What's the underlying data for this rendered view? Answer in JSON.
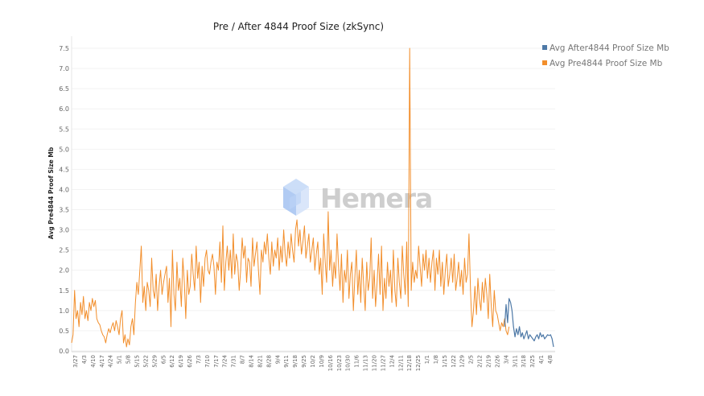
{
  "colors": {
    "pre": "#f28e2b",
    "after": "#4e79a7",
    "grid": "#f2f2f2",
    "axis": "#d9d9d9",
    "watermark_icon": "#bcd2f5"
  },
  "watermark": {
    "text": "Hemera"
  },
  "chart_data": {
    "type": "line",
    "title": "Pre / After 4844 Proof Size (zkSync)",
    "ylabel": "Avg Pre4844 Proof Size Mb",
    "xlabel": "",
    "ylim": [
      0,
      7.5
    ],
    "yticks": [
      "0.0",
      "0.5",
      "1.0",
      "1.5",
      "2.0",
      "2.5",
      "3.0",
      "3.5",
      "4.0",
      "4.5",
      "5.0",
      "5.5",
      "6.0",
      "6.5",
      "7.0",
      "7.5"
    ],
    "x_tick_labels": [
      "3/27",
      "4/3",
      "4/10",
      "4/17",
      "4/24",
      "5/1",
      "5/8",
      "5/15",
      "5/22",
      "5/29",
      "6/5",
      "6/12",
      "6/19",
      "6/26",
      "7/3",
      "7/10",
      "7/17",
      "7/24",
      "7/31",
      "8/7",
      "8/14",
      "8/21",
      "8/28",
      "9/4",
      "9/11",
      "9/18",
      "9/25",
      "10/2",
      "10/9",
      "10/16",
      "10/23",
      "10/30",
      "11/6",
      "11/13",
      "11/20",
      "11/27",
      "12/4",
      "12/11",
      "12/18",
      "12/25",
      "1/1",
      "1/8",
      "1/15",
      "1/22",
      "1/29",
      "2/5",
      "2/12",
      "2/19",
      "2/26",
      "3/4",
      "3/11",
      "3/18",
      "3/25",
      "4/1",
      "4/8"
    ],
    "legend": [
      "Avg After4844 Proof Size Mb",
      "Avg Pre4844 Proof Size Mb"
    ],
    "legend_position": "top-right",
    "series": [
      {
        "name": "Avg Pre4844 Proof Size Mb",
        "start_index": 0,
        "values": [
          0.2,
          0.4,
          1.5,
          0.8,
          1.0,
          0.6,
          1.2,
          0.9,
          1.35,
          0.8,
          1.0,
          0.75,
          1.2,
          1.0,
          1.3,
          1.1,
          1.25,
          0.8,
          0.7,
          0.65,
          0.5,
          0.4,
          0.35,
          0.2,
          0.4,
          0.55,
          0.45,
          0.6,
          0.7,
          0.5,
          0.75,
          0.6,
          0.4,
          0.8,
          1.0,
          0.2,
          0.4,
          0.1,
          0.3,
          0.15,
          0.6,
          0.8,
          0.4,
          1.2,
          1.7,
          1.4,
          2.0,
          2.6,
          1.2,
          1.6,
          1.0,
          1.7,
          1.5,
          1.1,
          2.3,
          1.5,
          1.3,
          1.9,
          1.0,
          1.6,
          2.0,
          1.4,
          1.7,
          1.9,
          2.1,
          1.2,
          1.8,
          0.6,
          2.5,
          1.4,
          1.0,
          2.2,
          1.5,
          1.8,
          1.1,
          2.3,
          1.7,
          0.8,
          2.0,
          1.4,
          1.6,
          2.4,
          1.9,
          1.5,
          2.6,
          1.8,
          2.2,
          1.2,
          2.1,
          1.6,
          2.3,
          2.5,
          2.0,
          1.9,
          2.2,
          2.4,
          2.1,
          1.4,
          2.2,
          2.0,
          2.7,
          1.7,
          3.1,
          1.5,
          2.2,
          2.6,
          2.0,
          2.5,
          1.8,
          2.9,
          1.9,
          2.4,
          2.2,
          1.5,
          2.0,
          2.8,
          2.3,
          2.6,
          1.7,
          2.3,
          2.2,
          1.6,
          2.8,
          2.1,
          2.4,
          2.7,
          2.0,
          1.4,
          2.5,
          2.2,
          2.7,
          2.4,
          2.9,
          2.3,
          1.9,
          2.7,
          2.1,
          2.5,
          2.3,
          2.8,
          2.0,
          2.6,
          2.2,
          3.0,
          2.4,
          2.1,
          2.7,
          2.3,
          2.9,
          2.5,
          2.2,
          3.0,
          3.25,
          2.6,
          3.0,
          2.4,
          2.7,
          3.1,
          2.3,
          2.6,
          2.9,
          2.2,
          2.5,
          2.8,
          2.0,
          2.4,
          2.7,
          1.9,
          2.3,
          1.4,
          2.9,
          2.2,
          1.7,
          3.45,
          2.0,
          2.5,
          1.6,
          2.2,
          1.8,
          2.9,
          2.1,
          1.5,
          2.4,
          1.2,
          2.0,
          1.7,
          2.5,
          1.3,
          1.9,
          2.2,
          1.0,
          1.8,
          2.5,
          1.4,
          2.0,
          1.2,
          2.3,
          1.6,
          1.0,
          2.2,
          1.5,
          1.8,
          2.8,
          1.3,
          2.0,
          1.1,
          1.7,
          2.4,
          1.4,
          2.6,
          1.0,
          1.8,
          1.3,
          2.2,
          1.6,
          2.0,
          1.2,
          2.5,
          1.5,
          1.1,
          2.3,
          1.7,
          1.3,
          2.6,
          1.9,
          1.4,
          2.7,
          1.1,
          7.5,
          1.5,
          2.2,
          1.7,
          2.0,
          1.8,
          2.6,
          2.1,
          1.6,
          2.4,
          2.0,
          2.5,
          1.8,
          2.3,
          1.7,
          2.2,
          2.5,
          1.5,
          2.3,
          1.9,
          2.5,
          1.6,
          2.2,
          1.4,
          2.0,
          2.4,
          1.6,
          1.9,
          2.3,
          1.7,
          2.4,
          1.5,
          1.8,
          2.2,
          1.6,
          2.0,
          1.4,
          2.3,
          1.7,
          1.9,
          2.9,
          1.5,
          0.6,
          1.0,
          1.6,
          0.9,
          1.8,
          1.3,
          1.0,
          1.7,
          1.2,
          1.8,
          1.4,
          0.8,
          1.9,
          1.1,
          0.6,
          1.5,
          1.0,
          0.9,
          0.7,
          0.5,
          0.7,
          0.6,
          0.8,
          0.5,
          0.4,
          0.6
        ]
      },
      {
        "name": "Avg After4844 Proof Size Mb",
        "start_index": 292,
        "values": [
          0.6,
          1.15,
          0.7,
          1.3,
          1.2,
          1.0,
          0.6,
          0.35,
          0.55,
          0.4,
          0.6,
          0.35,
          0.45,
          0.3,
          0.4,
          0.5,
          0.3,
          0.4,
          0.35,
          0.3,
          0.25,
          0.35,
          0.4,
          0.3,
          0.45,
          0.35,
          0.4,
          0.3,
          0.35,
          0.4,
          0.38,
          0.4,
          0.3,
          0.1
        ]
      }
    ]
  }
}
